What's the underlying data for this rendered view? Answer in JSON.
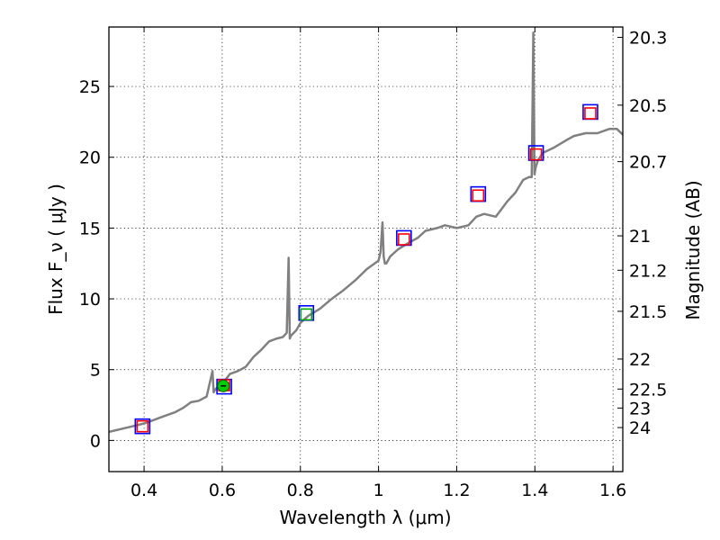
{
  "chart_data": {
    "type": "line",
    "xlabel": "Wavelength  λ (μm)",
    "ylabel": "Flux  F_ν  ( μJy )",
    "ylabel_right": "Magnitude (AB)",
    "xlim": [
      0.31,
      1.625
    ],
    "ylim": [
      -2.2,
      29.2
    ],
    "grid": true,
    "x_ticks": [
      0.4,
      0.6,
      0.8,
      1.0,
      1.2,
      1.4,
      1.6
    ],
    "x_tick_labels": [
      "0.4",
      "0.6",
      "0.8",
      "1",
      "1.2",
      "1.4",
      "1.6"
    ],
    "y_ticks": [
      0,
      5,
      10,
      15,
      20,
      25
    ],
    "y_tick_labels": [
      "0",
      "5",
      "10",
      "15",
      "20",
      "25"
    ],
    "right_ticks": [
      {
        "flux": 28.47,
        "label": "20.3"
      },
      {
        "flux": 23.68,
        "label": "20.5"
      },
      {
        "flux": 19.69,
        "label": "20.7"
      },
      {
        "flux": 14.45,
        "label": "21"
      },
      {
        "flux": 12.02,
        "label": "21.2"
      },
      {
        "flux": 9.12,
        "label": "21.5"
      },
      {
        "flux": 5.75,
        "label": "22"
      },
      {
        "flux": 3.63,
        "label": "22.5"
      },
      {
        "flux": 2.29,
        "label": "23"
      },
      {
        "flux": 0.91,
        "label": "24"
      }
    ],
    "series": [
      {
        "name": "spectrum",
        "kind": "line",
        "color": "#808080",
        "x": [
          0.31,
          0.34,
          0.37,
          0.4,
          0.42,
          0.45,
          0.48,
          0.5,
          0.52,
          0.54,
          0.56,
          0.575,
          0.578,
          0.582,
          0.59,
          0.6,
          0.62,
          0.64,
          0.66,
          0.68,
          0.7,
          0.72,
          0.74,
          0.755,
          0.765,
          0.77,
          0.773,
          0.776,
          0.79,
          0.8,
          0.82,
          0.85,
          0.88,
          0.91,
          0.94,
          0.97,
          1.0,
          1.005,
          1.01,
          1.013,
          1.016,
          1.02,
          1.03,
          1.05,
          1.08,
          1.1,
          1.12,
          1.15,
          1.17,
          1.2,
          1.23,
          1.25,
          1.27,
          1.3,
          1.33,
          1.35,
          1.37,
          1.385,
          1.392,
          1.396,
          1.399,
          1.402,
          1.408,
          1.42,
          1.45,
          1.48,
          1.5,
          1.53,
          1.56,
          1.59,
          1.61,
          1.625
        ],
        "values": [
          0.6,
          0.8,
          1.0,
          1.2,
          1.4,
          1.7,
          2.0,
          2.3,
          2.7,
          2.8,
          3.1,
          4.9,
          3.4,
          3.6,
          3.8,
          4.0,
          4.7,
          4.9,
          5.2,
          5.9,
          6.4,
          7.0,
          7.2,
          7.3,
          7.6,
          12.9,
          7.2,
          7.4,
          7.8,
          8.3,
          8.8,
          9.3,
          10.0,
          10.6,
          11.3,
          12.1,
          12.7,
          13.3,
          15.4,
          13.0,
          12.5,
          12.5,
          13.0,
          13.5,
          14.0,
          14.3,
          14.8,
          15.0,
          15.2,
          15.0,
          15.2,
          15.8,
          16.0,
          15.8,
          16.9,
          17.5,
          18.4,
          18.6,
          18.6,
          28.8,
          18.8,
          19.3,
          19.8,
          20.3,
          20.7,
          21.2,
          21.5,
          21.7,
          21.7,
          22.0,
          22.0,
          21.6
        ]
      },
      {
        "name": "photometry-blue",
        "kind": "open-square",
        "color": "#0000ff",
        "x": [
          0.396,
          0.605,
          0.815,
          1.065,
          1.255,
          1.403,
          1.542
        ],
        "values": [
          1.0,
          3.8,
          9.0,
          14.3,
          17.4,
          20.3,
          23.2
        ]
      },
      {
        "name": "photometry-red",
        "kind": "open-square",
        "color": "#ff0000",
        "x": [
          0.396,
          0.605,
          1.065,
          1.255,
          1.403,
          1.542
        ],
        "values": [
          1.0,
          3.9,
          14.2,
          17.3,
          20.2,
          23.1
        ]
      },
      {
        "name": "photometry-green",
        "kind": "open-square",
        "color": "#00aa00",
        "x": [
          0.815
        ],
        "values": [
          8.9
        ]
      },
      {
        "name": "reference-point",
        "kind": "filled-circle",
        "color": "#00cc00",
        "x": [
          0.603
        ],
        "values": [
          3.85
        ],
        "error": [
          0.3
        ]
      }
    ]
  }
}
